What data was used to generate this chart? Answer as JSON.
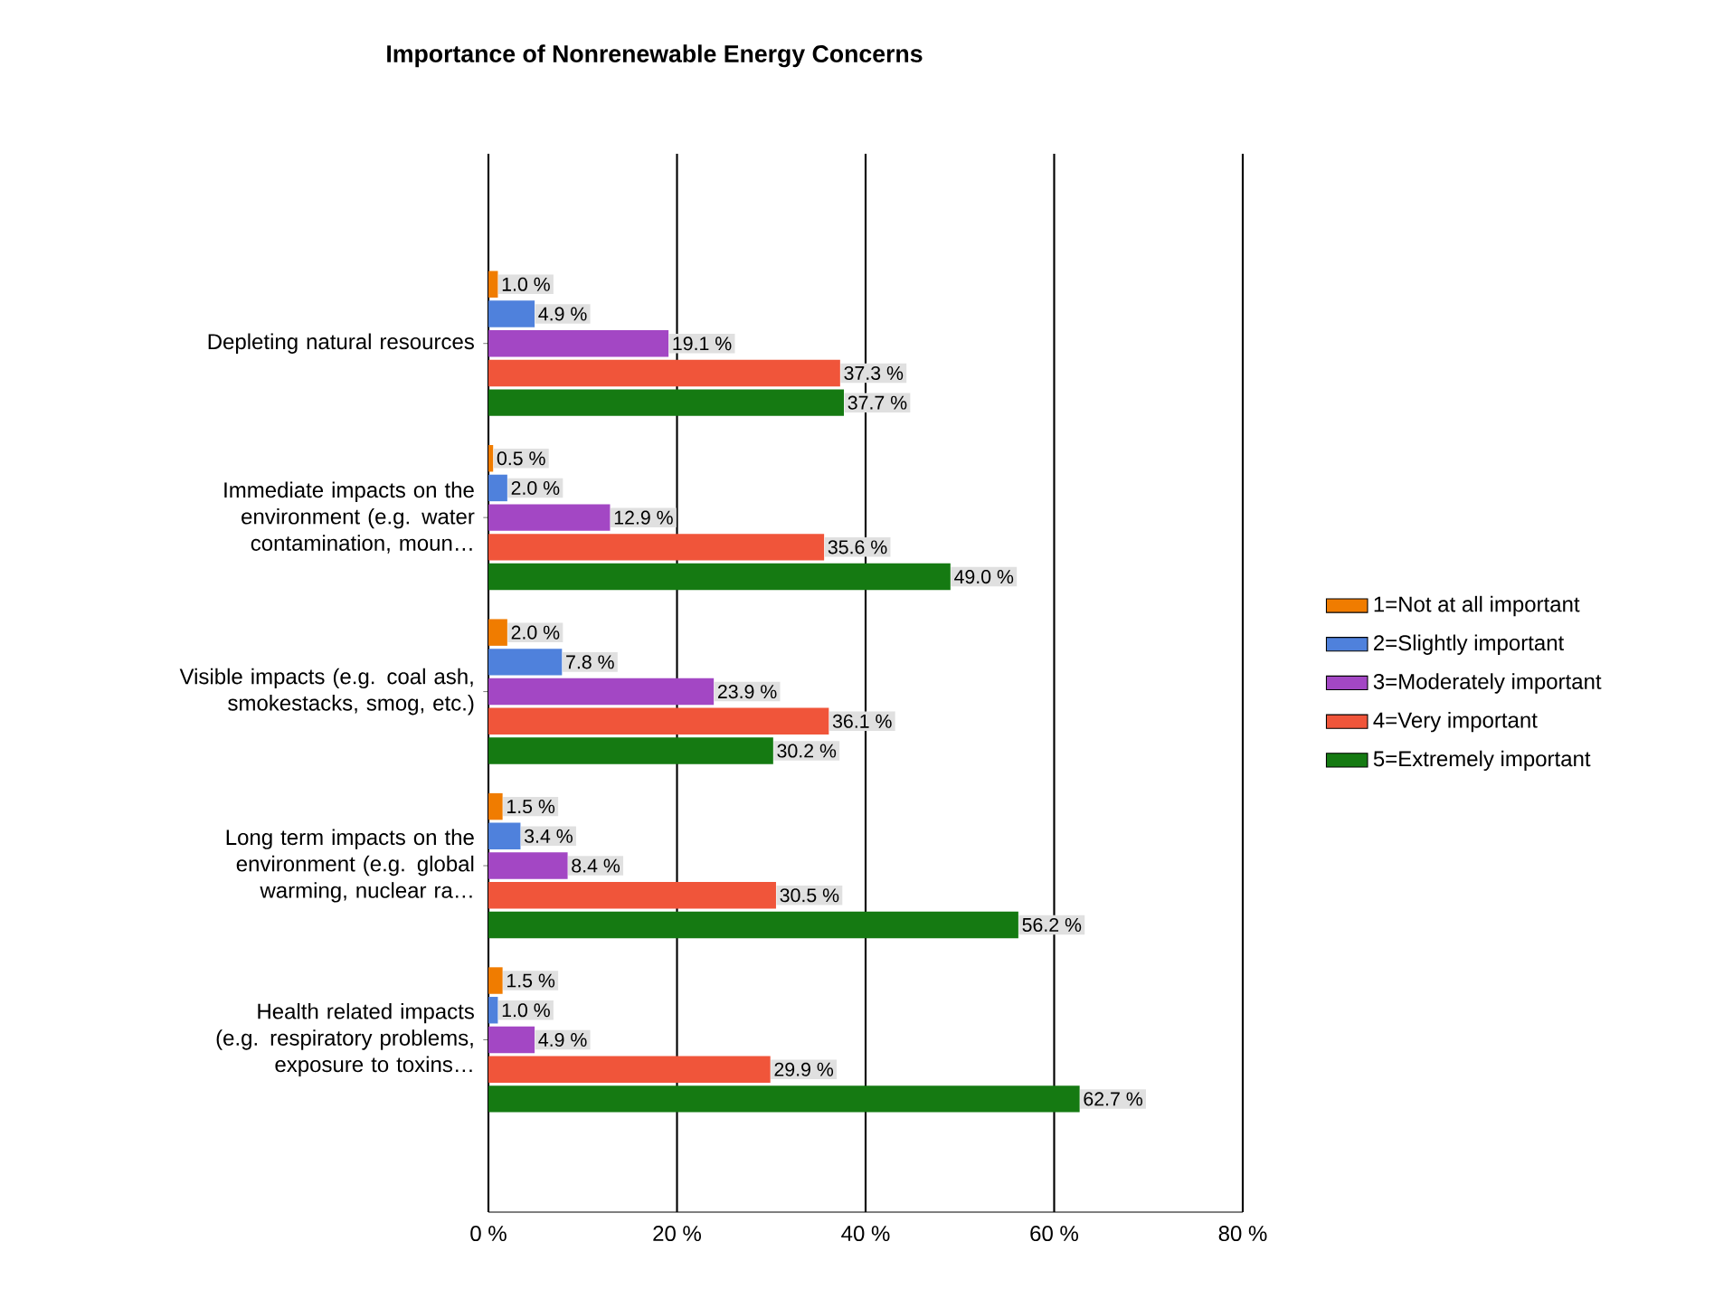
{
  "chart_data": {
    "type": "bar",
    "orientation": "horizontal",
    "title": "Importance of Nonrenewable Energy Concerns",
    "categories": [
      "Depleting natural resources",
      "Immediate impacts on the environment (e.g. water contamination, moun…",
      "Visible impacts (e.g. coal ash, smokestacks, smog, etc.)",
      "Long term impacts on the environment (e.g. global warming, nuclear ra…",
      "Health related impacts (e.g. respiratory problems, exposure to toxins…"
    ],
    "series": [
      {
        "name": "1=Not at all important",
        "color": "#f07c00",
        "values": [
          1.0,
          0.5,
          2.0,
          1.5,
          1.5
        ],
        "value_labels": [
          "1.0 %",
          "0.5 %",
          "2.0 %",
          "1.5 %",
          "1.5 %"
        ]
      },
      {
        "name": "2=Slightly important",
        "color": "#4f81dc",
        "values": [
          4.9,
          2.0,
          7.8,
          3.4,
          1.0
        ],
        "value_labels": [
          "4.9 %",
          "2.0 %",
          "7.8 %",
          "3.4 %",
          "1.0 %"
        ]
      },
      {
        "name": "3=Moderately important",
        "color": "#a347c4",
        "values": [
          19.1,
          12.9,
          23.9,
          8.4,
          4.9
        ],
        "value_labels": [
          "19.1 %",
          "12.9 %",
          "23.9 %",
          "8.4 %",
          "4.9 %"
        ]
      },
      {
        "name": "4=Very important",
        "color": "#f0553a",
        "values": [
          37.3,
          35.6,
          36.1,
          30.5,
          29.9
        ],
        "value_labels": [
          "37.3 %",
          "35.6 %",
          "36.1 %",
          "30.5 %",
          "29.9 %"
        ]
      },
      {
        "name": "5=Extremely important",
        "color": "#157a12",
        "values": [
          37.7,
          49.0,
          30.2,
          56.2,
          62.7
        ],
        "value_labels": [
          "37.7 %",
          "49.0 %",
          "30.2 %",
          "56.2 %",
          "62.7 %"
        ]
      }
    ],
    "xlim": [
      0,
      80
    ],
    "xticks": [
      {
        "value": 0,
        "label": "0 %"
      },
      {
        "value": 20,
        "label": "20 %"
      },
      {
        "value": 40,
        "label": "40 %"
      },
      {
        "value": 60,
        "label": "60 %"
      },
      {
        "value": 80,
        "label": "80 %"
      }
    ],
    "grid": "x",
    "legend": "right"
  }
}
